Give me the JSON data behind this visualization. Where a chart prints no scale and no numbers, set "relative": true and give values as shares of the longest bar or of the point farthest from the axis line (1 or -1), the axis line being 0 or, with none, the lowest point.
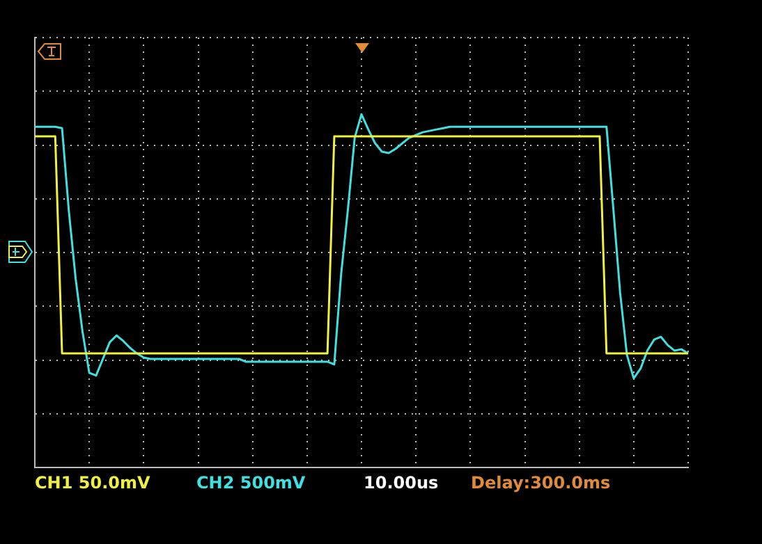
{
  "chart_data": {
    "type": "line",
    "relative": true,
    "grid": true,
    "legend": false,
    "marker": "none",
    "line_style": "solid",
    "categories": [
      null,
      null,
      null,
      null,
      null,
      null,
      null,
      null,
      null,
      null,
      null,
      null,
      null,
      null,
      null,
      null,
      null,
      null,
      null,
      null,
      null,
      null,
      null,
      null,
      null,
      null,
      null,
      null,
      null,
      null,
      null,
      null,
      null,
      null,
      null,
      null,
      null,
      null,
      null,
      null,
      null,
      null,
      null,
      null,
      null,
      null,
      null,
      null,
      null,
      null,
      null,
      null,
      null,
      null,
      null,
      null,
      null,
      null,
      null,
      null,
      null,
      null,
      null,
      null,
      null,
      null,
      null,
      null,
      null,
      null,
      null,
      null,
      null,
      null,
      null,
      null,
      null,
      null,
      null,
      null,
      null,
      null,
      null,
      null,
      null,
      null,
      null,
      null,
      null,
      null,
      null,
      null,
      null,
      null,
      null,
      null,
      null
    ],
    "series": [
      {
        "color": "#f0f040",
        "values": [
          0.84,
          0.84,
          0.84,
          0.84,
          -0.73,
          -0.73,
          -0.73,
          -0.73,
          -0.73,
          -0.73,
          -0.73,
          -0.73,
          -0.73,
          -0.73,
          -0.73,
          -0.73,
          -0.73,
          -0.73,
          -0.73,
          -0.73,
          -0.73,
          -0.73,
          -0.73,
          -0.73,
          -0.73,
          -0.73,
          -0.73,
          -0.73,
          -0.73,
          -0.73,
          -0.73,
          -0.73,
          -0.73,
          -0.73,
          -0.73,
          -0.73,
          -0.73,
          -0.73,
          -0.73,
          -0.73,
          -0.73,
          -0.73,
          -0.73,
          -0.73,
          0.84,
          0.84,
          0.84,
          0.84,
          0.84,
          0.84,
          0.84,
          0.84,
          0.84,
          0.84,
          0.84,
          0.84,
          0.84,
          0.84,
          0.84,
          0.84,
          0.84,
          0.84,
          0.84,
          0.84,
          0.84,
          0.84,
          0.84,
          0.84,
          0.84,
          0.84,
          0.84,
          0.84,
          0.84,
          0.84,
          0.84,
          0.84,
          0.84,
          0.84,
          0.84,
          0.84,
          0.84,
          0.84,
          0.84,
          0.84,
          -0.73,
          -0.73,
          -0.73,
          -0.73,
          -0.73,
          -0.73,
          -0.73,
          -0.73,
          -0.73,
          -0.73,
          -0.73,
          -0.73,
          -0.73
        ]
      },
      {
        "color": "#40e0e0",
        "values": [
          0.91,
          0.91,
          0.91,
          0.91,
          0.9,
          0.3,
          -0.19,
          -0.57,
          -0.87,
          -0.89,
          -0.77,
          -0.65,
          -0.6,
          -0.64,
          -0.69,
          -0.73,
          -0.76,
          -0.77,
          -0.77,
          -0.77,
          -0.77,
          -0.77,
          -0.77,
          -0.77,
          -0.77,
          -0.77,
          -0.77,
          -0.77,
          -0.77,
          -0.77,
          -0.77,
          -0.79,
          -0.79,
          -0.79,
          -0.79,
          -0.79,
          -0.79,
          -0.79,
          -0.79,
          -0.79,
          -0.79,
          -0.79,
          -0.79,
          -0.79,
          -0.81,
          -0.16,
          0.31,
          0.83,
          1.0,
          0.89,
          0.79,
          0.73,
          0.72,
          0.75,
          0.79,
          0.83,
          0.85,
          0.87,
          0.88,
          0.89,
          0.9,
          0.91,
          0.91,
          0.91,
          0.91,
          0.91,
          0.91,
          0.91,
          0.91,
          0.91,
          0.91,
          0.91,
          0.91,
          0.91,
          0.91,
          0.91,
          0.91,
          0.91,
          0.91,
          0.91,
          0.91,
          0.91,
          0.91,
          0.91,
          0.91,
          0.32,
          -0.29,
          -0.74,
          -0.91,
          -0.84,
          -0.71,
          -0.63,
          -0.61,
          -0.67,
          -0.71,
          -0.7,
          -0.73
        ]
      }
    ],
    "annotations": [
      "CH1 50.0mV",
      "CH2 500mV",
      "10.00us",
      "Delay:300.0ms"
    ]
  }
}
